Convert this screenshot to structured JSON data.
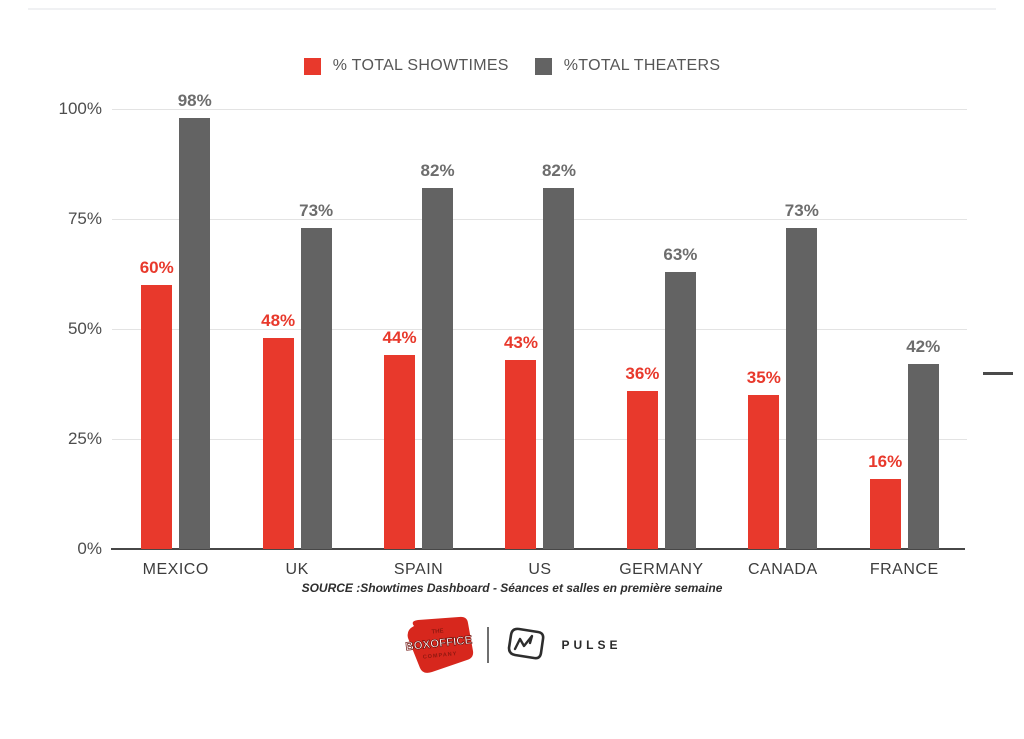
{
  "chart_data": {
    "type": "bar",
    "categories": [
      "MEXICO",
      "UK",
      "SPAIN",
      "US",
      "GERMANY",
      "CANADA",
      "FRANCE"
    ],
    "series": [
      {
        "name": "% TOTAL SHOWTIMES",
        "color": "#e8392c",
        "label_color": "#e8392c",
        "values": [
          60,
          48,
          44,
          43,
          36,
          35,
          16
        ]
      },
      {
        "name": "%TOTAL THEATERS",
        "color": "#636363",
        "label_color": "#6d6d6d",
        "values": [
          98,
          73,
          82,
          82,
          63,
          73,
          42
        ]
      }
    ],
    "title": "",
    "xlabel": "",
    "ylabel": "",
    "ylim": [
      0,
      100
    ],
    "yticks": [
      "100%",
      "75%",
      "50%",
      "25%",
      "0%"
    ],
    "grid": true,
    "legend_position": "top",
    "value_suffix": "%"
  },
  "source_note": "SOURCE :Showtimes Dashboard - Séances et salles en première semaine",
  "footer": {
    "boxoffice": {
      "top": "THE",
      "main": "BOXOFFICE",
      "bottom": "COMPANY"
    },
    "pulse": "PULSE"
  },
  "colors": {
    "showtimes_red": "#e8392c",
    "theaters_gray": "#636363",
    "axis_text": "#4d4d4d",
    "gridline": "#e3e3e3",
    "baseline": "#474747"
  }
}
